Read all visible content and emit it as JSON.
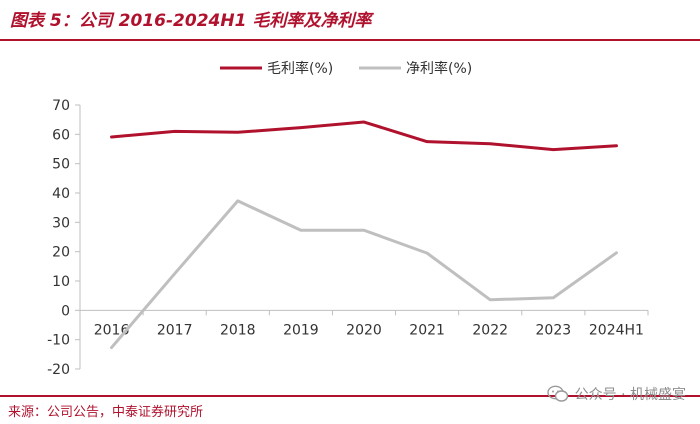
{
  "figure": {
    "title": "图表 5：公司 2016-2024H1 毛利率及净利率",
    "source": "来源：公司公告，中泰证券研究所",
    "watermark": "公众号 · 机械盛宴"
  },
  "colors": {
    "accent": "#b0122e",
    "series_gross": "#b0122e",
    "series_net": "#bfbfbf",
    "axis": "#bfbfbf"
  },
  "chart_data": {
    "type": "line",
    "title": "",
    "xlabel": "",
    "ylabel": "",
    "categories": [
      "2016",
      "2017",
      "2018",
      "2019",
      "2020",
      "2021",
      "2022",
      "2023",
      "2024H1"
    ],
    "series": [
      {
        "name": "毛利率(%)",
        "values": [
          59.1,
          61.0,
          60.7,
          62.3,
          64.2,
          57.5,
          56.8,
          54.8,
          56.1
        ]
      },
      {
        "name": "净利率(%)",
        "values": [
          -12.7,
          12.5,
          37.3,
          27.3,
          27.3,
          19.5,
          3.6,
          4.3,
          19.6
        ]
      }
    ],
    "ylim": [
      -20,
      70
    ],
    "yticks": [
      "70",
      "60",
      "50",
      "40",
      "30",
      "20",
      "10",
      "0",
      "-10",
      "-20"
    ],
    "grid": false,
    "legend_position": "top"
  }
}
